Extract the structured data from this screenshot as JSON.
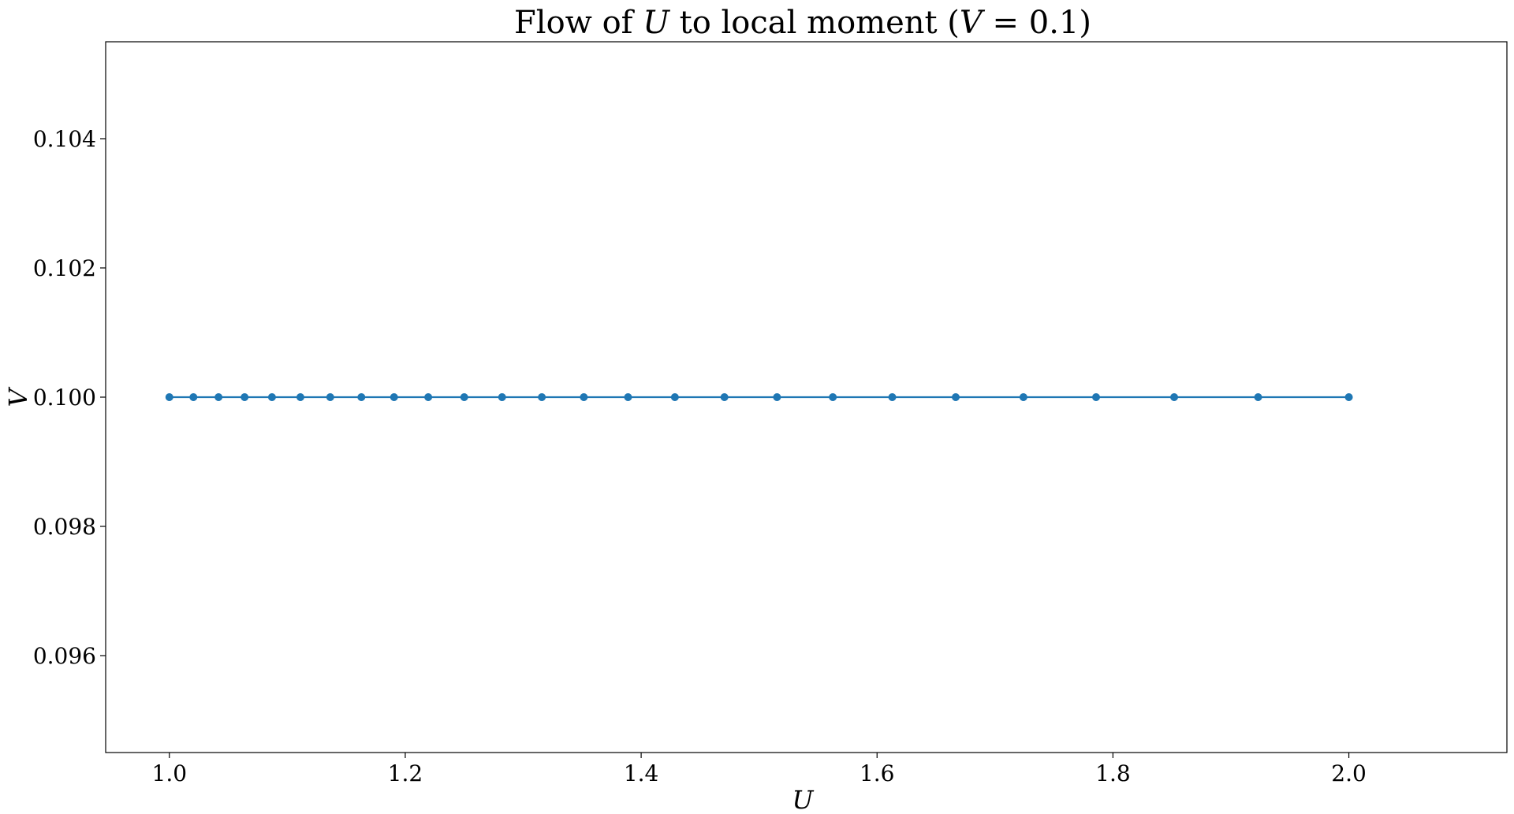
{
  "chart_data": {
    "type": "line",
    "title_parts": {
      "t1": "Flow of ",
      "t2": "U",
      "t3": " to local moment (",
      "t4": "V",
      "t5": " = 0.1)"
    },
    "xlabel": "U",
    "ylabel": "V",
    "xlim": [
      0.946,
      2.134
    ],
    "ylim": [
      0.0945,
      0.1055
    ],
    "xticks": [
      1.0,
      1.2,
      1.4,
      1.6,
      1.8,
      2.0
    ],
    "xtick_labels": [
      "1.0",
      "1.2",
      "1.4",
      "1.6",
      "1.8",
      "2.0"
    ],
    "yticks": [
      0.096,
      0.098,
      0.1,
      0.102,
      0.104
    ],
    "ytick_labels": [
      "0.096",
      "0.098",
      "0.100",
      "0.102",
      "0.104"
    ],
    "grid": false,
    "series": [
      {
        "color": "#1f77b4",
        "marker": "circle",
        "x": [
          1.0,
          1.0204,
          1.0417,
          1.0638,
          1.087,
          1.1111,
          1.1364,
          1.1628,
          1.1905,
          1.2195,
          1.25,
          1.2821,
          1.3158,
          1.3514,
          1.3889,
          1.4286,
          1.4706,
          1.5152,
          1.5625,
          1.6129,
          1.6667,
          1.7241,
          1.7857,
          1.8519,
          1.9231,
          2.0
        ],
        "y": [
          0.1,
          0.1,
          0.1,
          0.1,
          0.1,
          0.1,
          0.1,
          0.1,
          0.1,
          0.1,
          0.1,
          0.1,
          0.1,
          0.1,
          0.1,
          0.1,
          0.1,
          0.1,
          0.1,
          0.1,
          0.1,
          0.1,
          0.1,
          0.1,
          0.1,
          0.1
        ]
      }
    ]
  }
}
